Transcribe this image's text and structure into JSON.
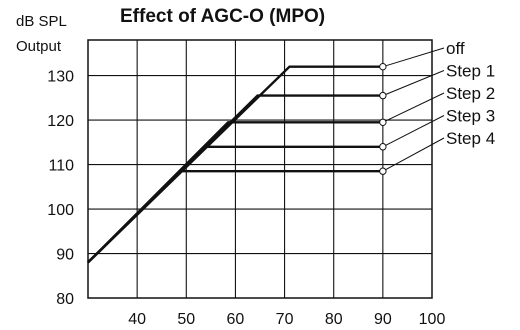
{
  "chart_data": {
    "type": "line",
    "title": "Effect of AGC-O (MPO)",
    "ylabel_line1": "dB SPL",
    "ylabel_line2": "Output",
    "xlabel": "",
    "xlim": [
      30,
      100
    ],
    "ylim": [
      80,
      138
    ],
    "x_ticks": [
      40,
      50,
      60,
      70,
      80,
      90,
      100
    ],
    "y_ticks": [
      80,
      90,
      100,
      110,
      120,
      130
    ],
    "grid": true,
    "line_color": "#111111",
    "series": [
      {
        "name": "off",
        "points": [
          [
            30,
            88
          ],
          [
            71,
            132
          ],
          [
            90,
            132
          ]
        ]
      },
      {
        "name": "Step 1",
        "points": [
          [
            30,
            88
          ],
          [
            64.5,
            125.5
          ],
          [
            90,
            125.5
          ]
        ]
      },
      {
        "name": "Step 2",
        "points": [
          [
            30,
            88
          ],
          [
            58.5,
            119.5
          ],
          [
            90,
            119.5
          ]
        ]
      },
      {
        "name": "Step 3",
        "points": [
          [
            30,
            88
          ],
          [
            54,
            114
          ],
          [
            90,
            114
          ]
        ]
      },
      {
        "name": "Step 4",
        "points": [
          [
            30,
            88
          ],
          [
            49,
            108.5
          ],
          [
            90,
            108.5
          ]
        ]
      }
    ]
  }
}
